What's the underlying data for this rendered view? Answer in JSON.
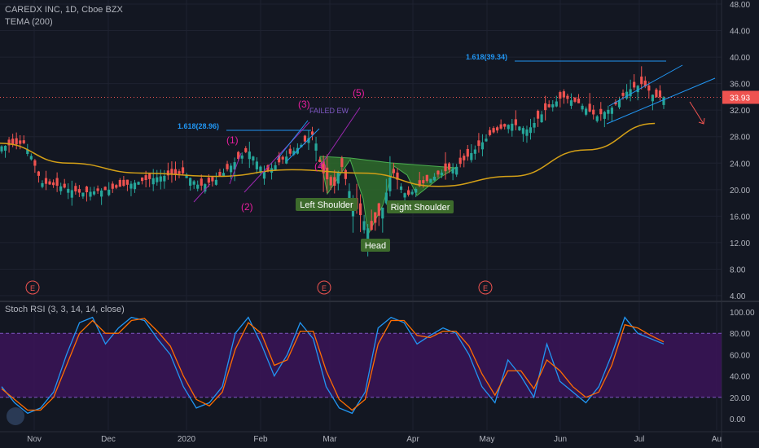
{
  "header": {
    "symbol_line": "CAREDX INC, 1D, Cboe BZX",
    "indicator_line": "TEMA (200)"
  },
  "stoch_header": "Stoch RSI (3, 3, 14, 14, close)",
  "colors": {
    "background": "#131722",
    "grid": "#1e2230",
    "candle_up": "#26a69a",
    "candle_down": "#ef5350",
    "tema": "#d4a017",
    "fib": "#2196f3",
    "pattern_fill": "#2e6b2a",
    "label_bg": "#3d6b2c",
    "wave_label": "#e91e9f",
    "channel": "#2196f3",
    "stoch_k": "#2196f3",
    "stoch_d": "#ff6d00",
    "stoch_band": "#3b1458",
    "price_badge": "#ef5350"
  },
  "chart_data": [
    {
      "type": "candlestick",
      "title": "CAREDX INC, 1D, Cboe BZX",
      "y_axis_ticks": [
        "4.00",
        "8.00",
        "12.00",
        "16.00",
        "20.00",
        "24.00",
        "28.00",
        "32.00",
        "36.00",
        "40.00",
        "44.00",
        "48.00"
      ],
      "ylim": [
        4,
        48
      ],
      "x_axis_ticks": [
        "Nov",
        "Dec",
        "2020",
        "Feb",
        "Mar",
        "Apr",
        "May",
        "Jun",
        "Jul",
        "Au"
      ],
      "last_price": "33.93",
      "series": [
        {
          "name": "TEMA (200)",
          "type": "line"
        }
      ],
      "close_path": [
        {
          "date": "2019-10-18",
          "close": 26.5
        },
        {
          "date": "2019-10-28",
          "close": 27.0
        },
        {
          "date": "2019-10-31",
          "close": 25.0
        },
        {
          "date": "2019-11-04",
          "close": 21.0
        },
        {
          "date": "2019-11-12",
          "close": 20.5
        },
        {
          "date": "2019-11-20",
          "close": 19.5
        },
        {
          "date": "2019-12-02",
          "close": 20.0
        },
        {
          "date": "2019-12-12",
          "close": 21.0
        },
        {
          "date": "2019-12-23",
          "close": 22.0
        },
        {
          "date": "2020-01-02",
          "close": 22.5
        },
        {
          "date": "2020-01-08",
          "close": 20.5
        },
        {
          "date": "2020-01-15",
          "close": 21.5
        },
        {
          "date": "2020-01-22",
          "close": 24.0
        },
        {
          "date": "2020-01-28",
          "close": 26.0
        },
        {
          "date": "2020-02-04",
          "close": 22.5
        },
        {
          "date": "2020-02-11",
          "close": 24.5
        },
        {
          "date": "2020-02-18",
          "close": 26.5
        },
        {
          "date": "2020-02-24",
          "close": 28.5
        },
        {
          "date": "2020-02-27",
          "close": 23.0
        },
        {
          "date": "2020-03-03",
          "close": 20.0
        },
        {
          "date": "2020-03-06",
          "close": 24.0
        },
        {
          "date": "2020-03-11",
          "close": 18.0
        },
        {
          "date": "2020-03-16",
          "close": 15.0
        },
        {
          "date": "2020-03-18",
          "close": 13.5
        },
        {
          "date": "2020-03-23",
          "close": 17.0
        },
        {
          "date": "2020-03-27",
          "close": 23.0
        },
        {
          "date": "2020-04-02",
          "close": 19.0
        },
        {
          "date": "2020-04-09",
          "close": 21.0
        },
        {
          "date": "2020-04-16",
          "close": 22.5
        },
        {
          "date": "2020-04-23",
          "close": 23.5
        },
        {
          "date": "2020-04-30",
          "close": 26.0
        },
        {
          "date": "2020-05-07",
          "close": 28.5
        },
        {
          "date": "2020-05-15",
          "close": 30.0
        },
        {
          "date": "2020-05-22",
          "close": 29.0
        },
        {
          "date": "2020-05-29",
          "close": 32.0
        },
        {
          "date": "2020-06-05",
          "close": 34.0
        },
        {
          "date": "2020-06-12",
          "close": 33.0
        },
        {
          "date": "2020-06-19",
          "close": 31.0
        },
        {
          "date": "2020-06-26",
          "close": 32.5
        },
        {
          "date": "2020-07-02",
          "close": 35.0
        },
        {
          "date": "2020-07-08",
          "close": 36.0
        },
        {
          "date": "2020-07-13",
          "close": 33.93
        }
      ],
      "tema_path": [
        {
          "date": "2019-10-18",
          "value": 27.0
        },
        {
          "date": "2019-11-15",
          "value": 24.0
        },
        {
          "date": "2019-12-15",
          "value": 22.5
        },
        {
          "date": "2020-01-15",
          "value": 22.0
        },
        {
          "date": "2020-02-15",
          "value": 23.0
        },
        {
          "date": "2020-03-15",
          "value": 22.5
        },
        {
          "date": "2020-04-15",
          "value": 20.5
        },
        {
          "date": "2020-05-15",
          "value": 22.0
        },
        {
          "date": "2020-06-15",
          "value": 26.0
        },
        {
          "date": "2020-07-13",
          "value": 30.0
        }
      ]
    },
    {
      "type": "line",
      "title": "Stoch RSI (3, 3, 14, 14, close)",
      "y_axis_ticks": [
        "0.00",
        "20.00",
        "40.00",
        "60.00",
        "80.00",
        "100.00"
      ],
      "ylim": [
        0,
        100
      ],
      "bands": [
        20,
        80
      ],
      "series": [
        {
          "name": "K",
          "values": [
            30,
            15,
            5,
            10,
            25,
            60,
            90,
            95,
            70,
            85,
            95,
            92,
            75,
            60,
            30,
            10,
            15,
            30,
            80,
            95,
            70,
            40,
            60,
            90,
            75,
            30,
            10,
            5,
            25,
            85,
            95,
            90,
            70,
            78,
            85,
            80,
            60,
            30,
            15,
            55,
            40,
            20,
            70,
            35,
            25,
            15,
            30,
            60,
            95,
            80,
            75,
            70
          ]
        },
        {
          "name": "D",
          "values": [
            28,
            18,
            8,
            8,
            20,
            50,
            80,
            92,
            80,
            80,
            92,
            94,
            82,
            68,
            40,
            18,
            12,
            25,
            65,
            90,
            80,
            50,
            55,
            82,
            82,
            45,
            18,
            8,
            18,
            70,
            92,
            92,
            78,
            76,
            82,
            82,
            68,
            42,
            22,
            45,
            45,
            28,
            55,
            45,
            30,
            20,
            25,
            50,
            88,
            85,
            78,
            72
          ]
        }
      ]
    }
  ],
  "annotations": {
    "fib1": "1.618(28.96)",
    "fib2": "1.618(39.34)",
    "failed": "FAILED EW",
    "wave1": "(1)",
    "wave2": "(2)",
    "wave3": "(3)",
    "wave4": "(4)",
    "wave5": "(5)",
    "left_shoulder": "Left Shoulder",
    "head": "Head",
    "right_shoulder": "Right Shoulder",
    "earnings_marker": "E"
  }
}
